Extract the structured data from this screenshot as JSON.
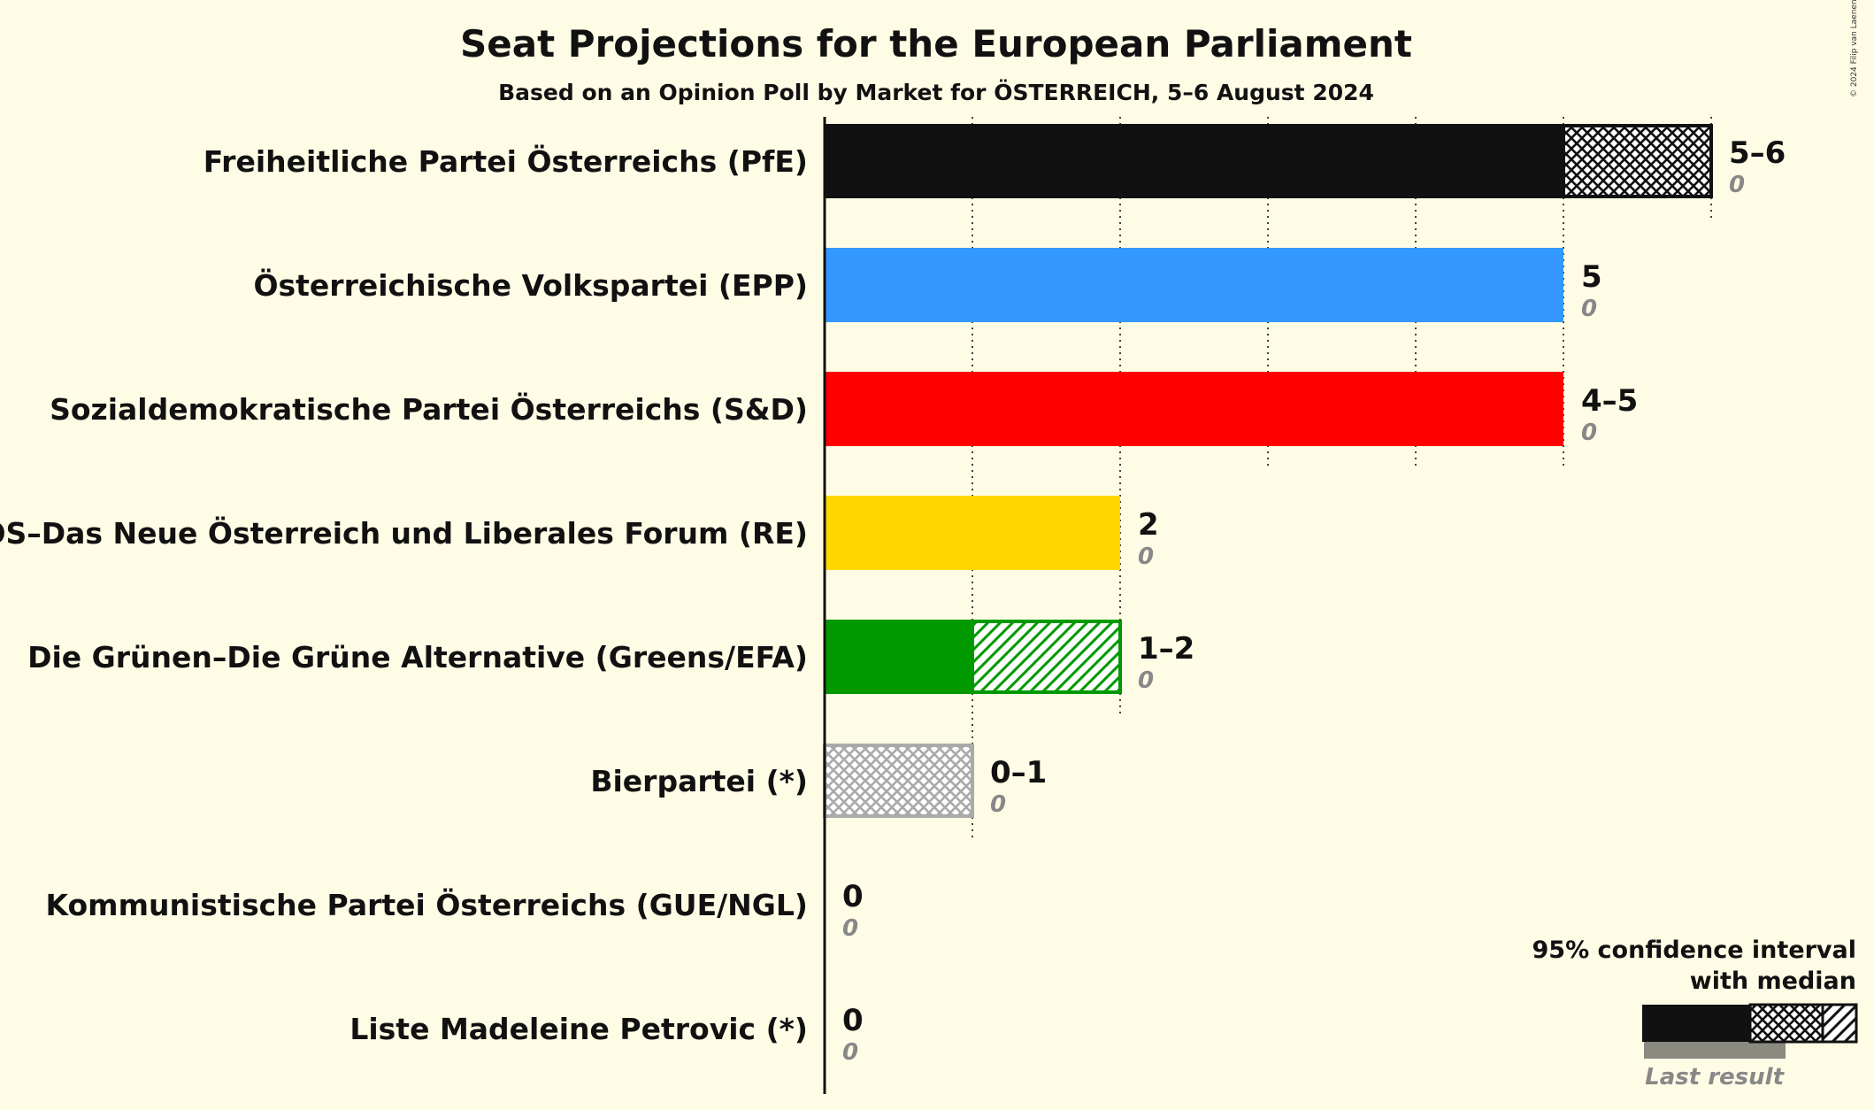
{
  "chart_data": {
    "type": "bar",
    "orientation": "horizontal",
    "title": "Seat Projections for the European Parliament",
    "subtitle": "Based on an Opinion Poll by Market for ÖSTERREICH, 5–6 August 2024",
    "copyright": "© 2024 Filip van Laenen",
    "grid": true,
    "xlim": [
      0,
      6
    ],
    "categories": [
      "Freiheitliche Partei Österreichs (PfE)",
      "Österreichische Volkspartei (EPP)",
      "Sozialdemokratische Partei Österreichs (S&D)",
      "NEOS–Das Neue Österreich und Liberales Forum (RE)",
      "Die Grünen–Die Grüne Alternative (Greens/EFA)",
      "Bierpartei (*)",
      "Kommunistische Partei Österreichs (GUE/NGL)",
      "Liste Madeleine Petrovic (*)"
    ],
    "parties": [
      {
        "name": "Freiheitliche Partei Österreichs (PfE)",
        "color": "#111111",
        "low": 5,
        "median": 5,
        "high": 6,
        "range_label": "5–6",
        "last_result": "0",
        "hatch": "cross",
        "gridline_max": 6
      },
      {
        "name": "Österreichische Volkspartei (EPP)",
        "color": "#3399FF",
        "low": 5,
        "median": 5,
        "high": 5,
        "range_label": "5",
        "last_result": "0",
        "hatch": "none",
        "gridline_max": 0
      },
      {
        "name": "Sozialdemokratische Partei Österreichs (S&D)",
        "color": "#FF0000",
        "low": 4,
        "median": 5,
        "high": 5,
        "range_label": "4–5",
        "last_result": "0",
        "hatch": "cross",
        "gridline_max": 5
      },
      {
        "name": "NEOS–Das Neue Österreich und Liberales Forum (RE)",
        "color": "#FFD700",
        "low": 2,
        "median": 2,
        "high": 2,
        "range_label": "2",
        "last_result": "0",
        "hatch": "none",
        "gridline_max": 2
      },
      {
        "name": "Die Grünen–Die Grüne Alternative (Greens/EFA)",
        "color": "#009900",
        "low": 1,
        "median": 1,
        "high": 2,
        "range_label": "1–2",
        "last_result": "0",
        "hatch": "diagonal",
        "gridline_max": 2
      },
      {
        "name": "Bierpartei (*)",
        "color": "#AAAAAA",
        "low": 0,
        "median": 0,
        "high": 1,
        "range_label": "0–1",
        "last_result": "0",
        "hatch": "cross",
        "gridline_max": 1
      },
      {
        "name": "Kommunistische Partei Österreichs (GUE/NGL)",
        "color": "#8B0000",
        "low": 0,
        "median": 0,
        "high": 0,
        "range_label": "0",
        "last_result": "0",
        "hatch": "none",
        "gridline_max": 0
      },
      {
        "name": "Liste Madeleine Petrovic (*)",
        "color": "#777777",
        "low": 0,
        "median": 0,
        "high": 0,
        "range_label": "0",
        "last_result": "0",
        "hatch": "none",
        "gridline_max": 0
      }
    ],
    "legend": {
      "position": "bottom-right",
      "line1": "95% confidence interval",
      "line2": "with median",
      "last_result_label": "Last result"
    }
  }
}
